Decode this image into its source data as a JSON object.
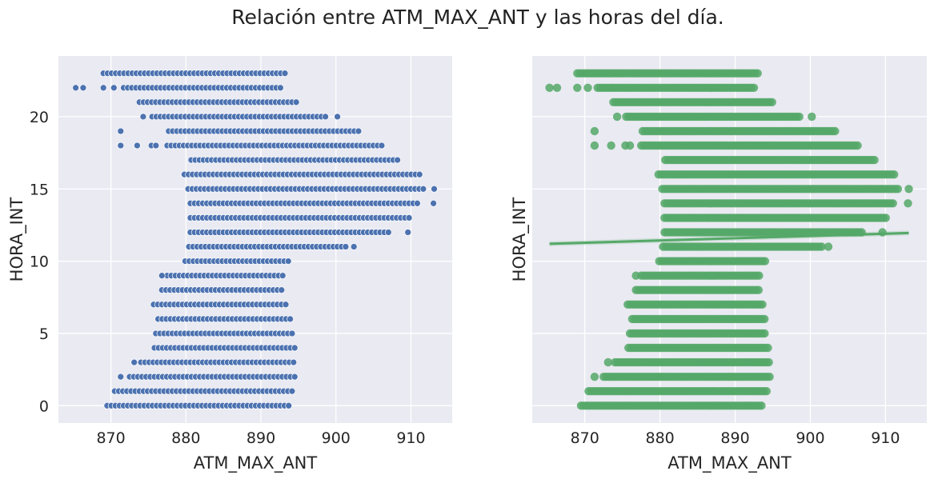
{
  "title": "Relación entre ATM_MAX_ANT y las horas del día.",
  "colors": {
    "background": "#ffffff",
    "axes_face": "#eaeaf2",
    "grid": "#ffffff",
    "scatter_blue": "#4c72b0",
    "regplot_green": "#55a868"
  },
  "chart_data": [
    {
      "type": "scatter",
      "style": "seaborn-darkgrid",
      "marker": "circle with white edge",
      "xlabel": "ATM_MAX_ANT",
      "ylabel": "HORA_INT",
      "xlim": [
        863,
        915.5
      ],
      "ylim": [
        -1.2,
        24.2
      ],
      "xticks": [
        870,
        880,
        890,
        900,
        910
      ],
      "yticks": [
        0,
        5,
        10,
        15,
        20
      ],
      "grid": true,
      "ranges_by_hour": [
        {
          "hour": 0,
          "x_min": 869.5,
          "x_max": 893.8,
          "isolated": []
        },
        {
          "hour": 1,
          "x_min": 870.5,
          "x_max": 894.2,
          "isolated": []
        },
        {
          "hour": 2,
          "x_min": 872.5,
          "x_max": 894.6,
          "isolated": [
            871.3
          ]
        },
        {
          "hour": 3,
          "x_min": 874.0,
          "x_max": 894.6,
          "isolated": [
            873.1
          ]
        },
        {
          "hour": 4,
          "x_min": 875.8,
          "x_max": 894.6,
          "isolated": []
        },
        {
          "hour": 5,
          "x_min": 876.0,
          "x_max": 894.2,
          "isolated": []
        },
        {
          "hour": 6,
          "x_min": 876.3,
          "x_max": 894.2,
          "isolated": []
        },
        {
          "hour": 7,
          "x_min": 875.7,
          "x_max": 893.8,
          "isolated": []
        },
        {
          "hour": 8,
          "x_min": 876.8,
          "x_max": 893.2,
          "isolated": []
        },
        {
          "hour": 9,
          "x_min": 877.5,
          "x_max": 893.2,
          "isolated": [
            876.8
          ]
        },
        {
          "hour": 10,
          "x_min": 879.9,
          "x_max": 894.0,
          "isolated": []
        },
        {
          "hour": 11,
          "x_min": 880.4,
          "x_max": 901.8,
          "isolated": [
            902.4
          ]
        },
        {
          "hour": 12,
          "x_min": 880.6,
          "x_max": 907.0,
          "isolated": [
            909.6
          ]
        },
        {
          "hour": 13,
          "x_min": 880.6,
          "x_max": 910.2,
          "isolated": []
        },
        {
          "hour": 14,
          "x_min": 880.6,
          "x_max": 911.0,
          "isolated": [
            913.0
          ]
        },
        {
          "hour": 15,
          "x_min": 880.3,
          "x_max": 911.8,
          "isolated": [
            913.1
          ]
        },
        {
          "hour": 16,
          "x_min": 879.8,
          "x_max": 911.2,
          "isolated": []
        },
        {
          "hour": 17,
          "x_min": 880.7,
          "x_max": 908.6,
          "isolated": []
        },
        {
          "hour": 18,
          "x_min": 877.5,
          "x_max": 906.5,
          "isolated": [
            871.3,
            873.5,
            875.4,
            876.0
          ]
        },
        {
          "hour": 19,
          "x_min": 877.7,
          "x_max": 903.4,
          "isolated": [
            871.3
          ]
        },
        {
          "hour": 20,
          "x_min": 875.5,
          "x_max": 898.7,
          "isolated": [
            874.3,
            900.2
          ]
        },
        {
          "hour": 21,
          "x_min": 873.8,
          "x_max": 895.0,
          "isolated": []
        },
        {
          "hour": 22,
          "x_min": 871.7,
          "x_max": 892.8,
          "isolated": [
            865.3,
            866.3,
            869.0,
            870.4
          ]
        },
        {
          "hour": 23,
          "x_min": 869.0,
          "x_max": 893.3,
          "isolated": []
        }
      ]
    },
    {
      "type": "scatter",
      "style": "seaborn-darkgrid regplot",
      "marker": "filled circle",
      "xlabel": "ATM_MAX_ANT",
      "ylabel": "HORA_INT",
      "xlim": [
        863,
        915.5
      ],
      "ylim": [
        -1.2,
        24.2
      ],
      "xticks": [
        870,
        880,
        890,
        900,
        910
      ],
      "yticks": [
        0,
        5,
        10,
        15,
        20
      ],
      "shared_y_tick_labels": false,
      "grid": true,
      "same_points_as": "left panel",
      "regression_line": {
        "x": [
          865.3,
          913.1
        ],
        "y": [
          11.2,
          11.95
        ]
      }
    }
  ]
}
